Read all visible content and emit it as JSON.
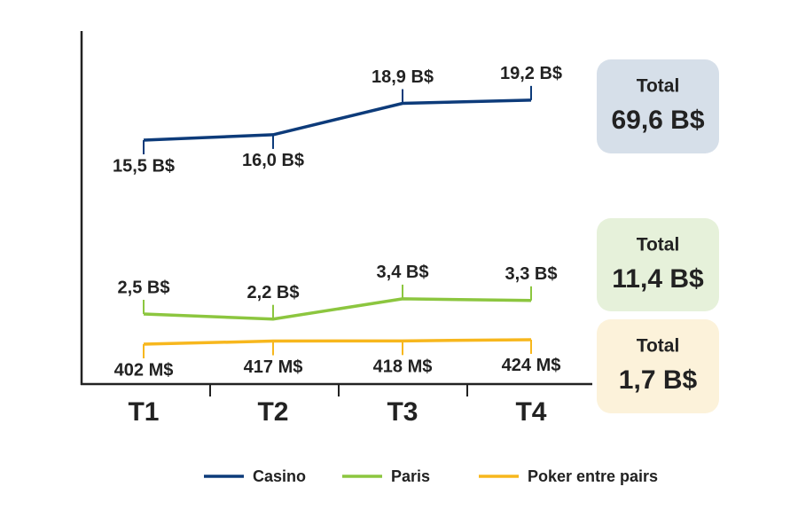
{
  "chart_data": {
    "type": "line",
    "categories": [
      "T1",
      "T2",
      "T3",
      "T4"
    ],
    "series": [
      {
        "name": "Casino",
        "color": "#0d3b7a",
        "values": [
          15.5,
          16.0,
          18.9,
          19.2
        ],
        "value_labels": [
          "15,5 B$",
          "16,0 B$",
          "18,9 B$",
          "19,2 B$"
        ]
      },
      {
        "name": "Paris",
        "color": "#8cc63f",
        "values": [
          2.5,
          2.2,
          3.4,
          3.3
        ],
        "value_labels": [
          "2,5 B$",
          "2,2 B$",
          "3,4 B$",
          "3,3 B$"
        ]
      },
      {
        "name": "Poker entre pairs",
        "color": "#f7b71d",
        "values": [
          402,
          417,
          418,
          424
        ],
        "value_labels": [
          "402 M$",
          "417 M$",
          "418 M$",
          "424 M$"
        ]
      }
    ],
    "totals": [
      {
        "title": "Total",
        "text": "69,6 B$",
        "color": "#d6dfe9"
      },
      {
        "title": "Total",
        "text": "11,4 B$",
        "color": "#e6f1da"
      },
      {
        "title": "Total",
        "text": "1,7 B$",
        "color": "#fcf2da"
      }
    ]
  }
}
